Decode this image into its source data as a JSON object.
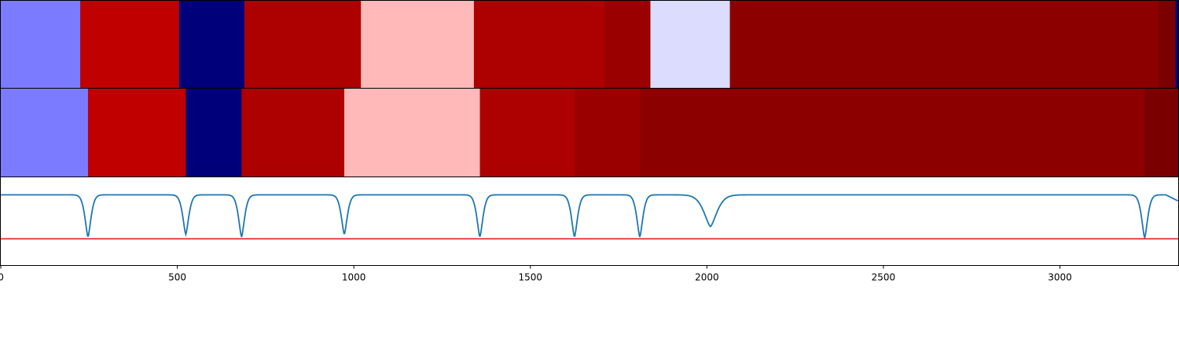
{
  "chart_data": [
    {
      "type": "heatmap",
      "name": "top-segment-strip",
      "segments": [
        {
          "start": 0,
          "end": 225,
          "color": "#7b7bff"
        },
        {
          "start": 225,
          "end": 505,
          "color": "#c00000"
        },
        {
          "start": 505,
          "end": 690,
          "color": "#00007a"
        },
        {
          "start": 690,
          "end": 1020,
          "color": "#ad0000"
        },
        {
          "start": 1020,
          "end": 1340,
          "color": "#ffb9b9"
        },
        {
          "start": 1340,
          "end": 1710,
          "color": "#ad0000"
        },
        {
          "start": 1710,
          "end": 1840,
          "color": "#9a0000"
        },
        {
          "start": 1840,
          "end": 2065,
          "color": "#dcdcff"
        },
        {
          "start": 2065,
          "end": 3280,
          "color": "#8c0000"
        },
        {
          "start": 3280,
          "end": 3327,
          "color": "#7a0000"
        },
        {
          "start": 3327,
          "end": 3335,
          "color": "#00007a"
        }
      ]
    },
    {
      "type": "heatmap",
      "name": "middle-segment-strip",
      "segments": [
        {
          "start": 0,
          "end": 247,
          "color": "#7b7bff"
        },
        {
          "start": 247,
          "end": 524,
          "color": "#c00000"
        },
        {
          "start": 524,
          "end": 682,
          "color": "#00007a"
        },
        {
          "start": 682,
          "end": 973,
          "color": "#ad0000"
        },
        {
          "start": 973,
          "end": 1357,
          "color": "#ffb9b9"
        },
        {
          "start": 1357,
          "end": 1625,
          "color": "#ad0000"
        },
        {
          "start": 1625,
          "end": 1810,
          "color": "#9a0000"
        },
        {
          "start": 1810,
          "end": 3240,
          "color": "#8c0000"
        },
        {
          "start": 3240,
          "end": 3335,
          "color": "#7a0000"
        }
      ]
    },
    {
      "type": "line",
      "name": "signal-panel",
      "baseline": 1.0,
      "line_color": "#1f77b4",
      "dips": [
        {
          "x": 247,
          "depth": 0.96
        },
        {
          "x": 524,
          "depth": 0.9
        },
        {
          "x": 682,
          "depth": 0.96
        },
        {
          "x": 973,
          "depth": 0.9
        },
        {
          "x": 1357,
          "depth": 0.96
        },
        {
          "x": 1625,
          "depth": 0.96
        },
        {
          "x": 1810,
          "depth": 0.96
        },
        {
          "x": 2010,
          "depth": 0.72
        },
        {
          "x": 3240,
          "depth": 0.98
        }
      ],
      "threshold": {
        "y": 0.0,
        "color": "#e41a1c"
      },
      "ylim": [
        -0.6,
        1.4
      ],
      "xlim": [
        0,
        3335
      ],
      "xticks": [
        0,
        500,
        1000,
        1500,
        2000,
        2500,
        3000
      ],
      "xticklabels": [
        "0",
        "500",
        "1000",
        "1500",
        "2000",
        "2500",
        "3000"
      ]
    }
  ]
}
